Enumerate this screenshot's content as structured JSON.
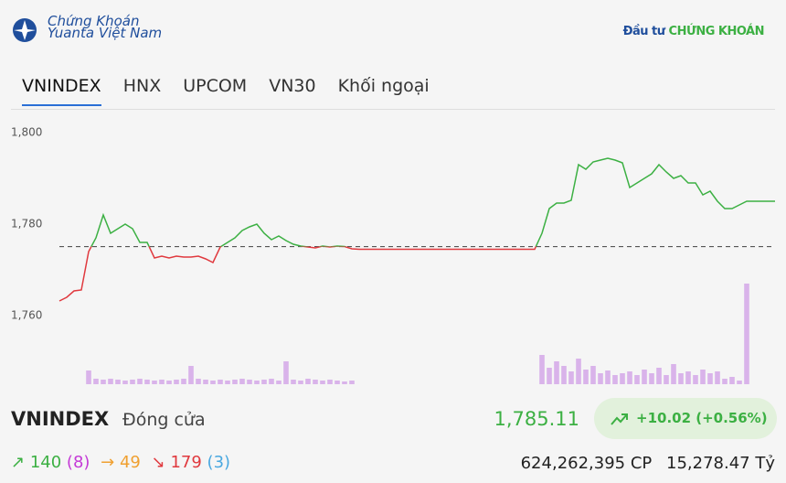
{
  "header": {
    "logo_line1": "Chứng Khoán",
    "logo_line2": "Yuanta Việt Nam",
    "brand_a": "Đầu tư",
    "brand_b": "CHỨNG KHOÁN"
  },
  "tabs": [
    "VNINDEX",
    "HNX",
    "UPCOM",
    "VN30",
    "Khối ngoại"
  ],
  "active_tab": 0,
  "chart_data": {
    "type": "line",
    "ylim": [
      1745,
      1803
    ],
    "yticks": [
      {
        "value": 1760,
        "label": "1,760"
      },
      {
        "value": 1780,
        "label": "1,780"
      },
      {
        "value": 1800,
        "label": "1,800"
      }
    ],
    "reference": 1775.09,
    "up_color": "#3cb043",
    "down_color": "#e0393e",
    "volume_color": "#d9b3ea",
    "values": [
      1763.2,
      1764,
      1765.4,
      1765.6,
      1774,
      1777,
      1782,
      1778,
      1779,
      1780,
      1779,
      1776,
      1776,
      1772.6,
      1773,
      1772.6,
      1773,
      1772.8,
      1772.8,
      1773,
      1772.4,
      1771.6,
      1775,
      1776,
      1777,
      1778.6,
      1779.4,
      1780,
      1778,
      1776.6,
      1777.4,
      1776.4,
      1775.6,
      1775.2,
      1775,
      1774.8,
      1775.2,
      1775,
      1775.2,
      1775.1,
      1774.6,
      1774.5,
      1774.5,
      1774.5,
      1774.5,
      1774.5,
      1774.5,
      1774.5,
      1774.5,
      1774.5,
      1774.5,
      1774.5,
      1774.5,
      1774.5,
      1774.5,
      1774.5,
      1774.5,
      1774.5,
      1774.5,
      1774.5,
      1774.5,
      1774.5,
      1774.5,
      1774.5,
      1774.5,
      1774.5,
      1778,
      1783.4,
      1784.6,
      1784.6,
      1785.2,
      1793,
      1792,
      1793.6,
      1794,
      1794.4,
      1794,
      1793.4,
      1788,
      1789,
      1790,
      1791,
      1793,
      1791.4,
      1790,
      1790.6,
      1789,
      1789,
      1786.4,
      1787.2,
      1785,
      1783.4,
      1783.4,
      1784.2,
      1785
    ],
    "volumes": [
      0,
      0,
      0,
      0,
      15,
      6,
      5,
      6,
      5,
      4,
      5,
      6,
      5,
      4,
      5,
      4,
      5,
      6,
      20,
      6,
      5,
      4,
      5,
      4,
      5,
      6,
      5,
      4,
      5,
      6,
      4,
      25,
      5,
      4,
      6,
      5,
      4,
      5,
      4,
      3,
      4,
      0,
      0,
      0,
      0,
      0,
      0,
      0,
      0,
      0,
      0,
      0,
      0,
      0,
      0,
      0,
      0,
      0,
      0,
      0,
      0,
      0,
      0,
      0,
      0,
      0,
      32,
      18,
      25,
      20,
      14,
      28,
      16,
      20,
      12,
      15,
      10,
      12,
      14,
      10,
      16,
      12,
      18,
      10,
      22,
      12,
      14,
      10,
      16,
      12,
      14,
      6,
      8,
      4,
      110
    ]
  },
  "summary": {
    "name": "VNINDEX",
    "label": "Đóng cửa",
    "price": "1,785.11",
    "change": "+10.02 (+0.56%)",
    "up": "140",
    "ceiling": "(8)",
    "flat": "49",
    "down": "179",
    "floor": "(3)",
    "volume": "624,262,395 CP",
    "value": "15,278.47 Tỷ"
  }
}
